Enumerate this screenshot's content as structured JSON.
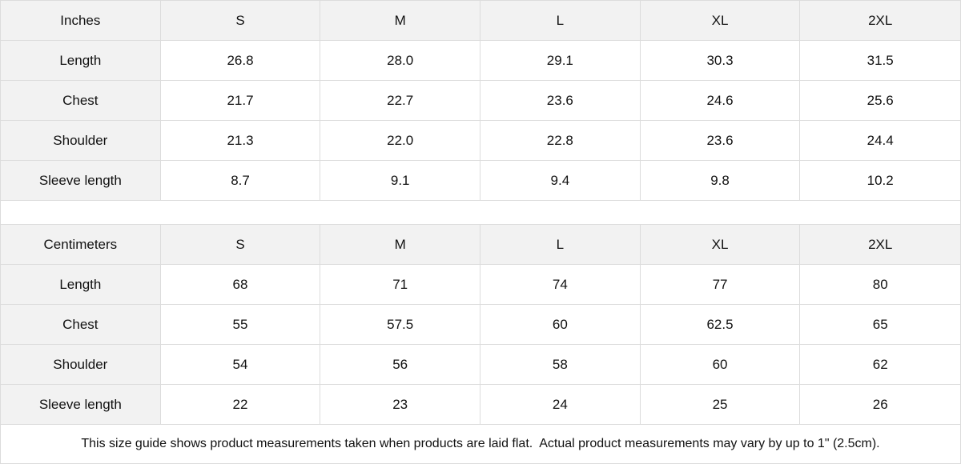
{
  "inches": {
    "header": [
      "Inches",
      "S",
      "M",
      "L",
      "XL",
      "2XL"
    ],
    "rows": [
      [
        "Length",
        "26.8",
        "28.0",
        "29.1",
        "30.3",
        "31.5"
      ],
      [
        "Chest",
        "21.7",
        "22.7",
        "23.6",
        "24.6",
        "25.6"
      ],
      [
        "Shoulder",
        "21.3",
        "22.0",
        "22.8",
        "23.6",
        "24.4"
      ],
      [
        "Sleeve length",
        "8.7",
        "9.1",
        "9.4",
        "9.8",
        "10.2"
      ]
    ]
  },
  "centimeters": {
    "header": [
      "Centimeters",
      "S",
      "M",
      "L",
      "XL",
      "2XL"
    ],
    "rows": [
      [
        "Length",
        "68",
        "71",
        "74",
        "77",
        "80"
      ],
      [
        "Chest",
        "55",
        "57.5",
        "60",
        "62.5",
        "65"
      ],
      [
        "Shoulder",
        "54",
        "56",
        "58",
        "60",
        "62"
      ],
      [
        "Sleeve length",
        "22",
        "23",
        "24",
        "25",
        "26"
      ]
    ]
  },
  "footer_note": "This size guide shows product measurements taken when products are laid flat.  Actual product measurements may vary by up to 1\" (2.5cm).",
  "colors": {
    "header_bg": "#f2f2f2",
    "border": "#dcdcdc"
  }
}
